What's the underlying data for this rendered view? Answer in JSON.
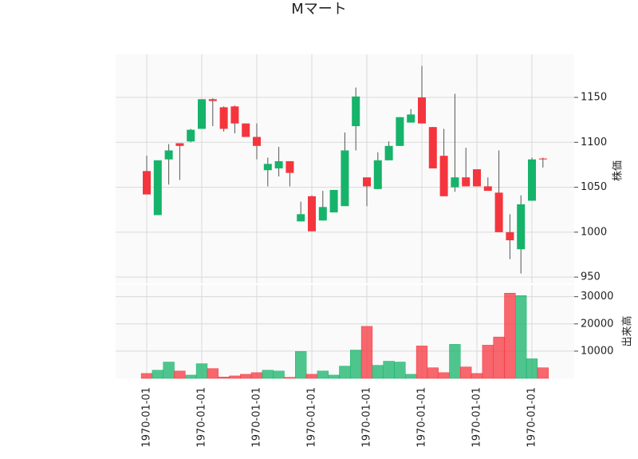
{
  "chart_data": {
    "type": "candlestick",
    "title": "Mマート",
    "categories": [
      "1970-01-01",
      null,
      null,
      null,
      null,
      "1970-01-01",
      null,
      null,
      null,
      null,
      "1970-01-01",
      null,
      null,
      null,
      null,
      "1970-01-01",
      null,
      null,
      null,
      null,
      "1970-01-01",
      null,
      null,
      null,
      null,
      "1970-01-01",
      null,
      null,
      null,
      null,
      "1970-01-01",
      null,
      null,
      null,
      null,
      "1970-01-01",
      null
    ],
    "open": [
      1068,
      1019,
      1081,
      1099,
      1101,
      1115,
      1148,
      1139,
      1140,
      1121,
      1106,
      1069,
      1071,
      1079,
      1012,
      1040,
      1013,
      1022,
      1029,
      1118,
      1061,
      1048,
      1080,
      1096,
      1122,
      1150,
      1117,
      1085,
      1050,
      1061,
      1070,
      1051,
      1044,
      1000,
      981,
      1035,
      1082
    ],
    "high": [
      1085,
      1080,
      1098,
      1099,
      1115,
      1148,
      1149,
      1140,
      1141,
      1121,
      1121,
      1083,
      1095,
      1079,
      1034,
      1041,
      1046,
      1047,
      1111,
      1161,
      1061,
      1089,
      1101,
      1128,
      1137,
      1185,
      1117,
      1115,
      1154,
      1094,
      1070,
      1061,
      1091,
      1020,
      1041,
      1083,
      1083
    ],
    "low": [
      1042,
      1019,
      1053,
      1058,
      1100,
      1115,
      1118,
      1112,
      1110,
      1106,
      1081,
      1051,
      1062,
      1051,
      1012,
      1001,
      1013,
      1022,
      1029,
      1091,
      1029,
      1048,
      1080,
      1096,
      1122,
      1121,
      1071,
      1040,
      1045,
      1051,
      1051,
      1046,
      1000,
      970,
      954,
      1035,
      1072
    ],
    "close": [
      1042,
      1080,
      1091,
      1096,
      1114,
      1148,
      1146,
      1115,
      1121,
      1106,
      1096,
      1076,
      1079,
      1066,
      1020,
      1001,
      1028,
      1047,
      1091,
      1151,
      1051,
      1080,
      1096,
      1128,
      1131,
      1121,
      1071,
      1040,
      1061,
      1051,
      1051,
      1046,
      1000,
      991,
      1031,
      1081,
      1081
    ],
    "volume": [
      1800,
      3000,
      6000,
      2700,
      1200,
      5400,
      3600,
      500,
      900,
      1500,
      2100,
      3000,
      2700,
      400,
      9900,
      1500,
      2700,
      1200,
      4500,
      10400,
      19100,
      4800,
      6300,
      6000,
      1500,
      11900,
      3900,
      2100,
      12500,
      4200,
      1800,
      12200,
      15200,
      31300,
      30400,
      7200,
      3900
    ],
    "ylim": [
      943,
      1198
    ],
    "yticks": [
      950,
      1000,
      1050,
      1100,
      1150
    ],
    "ylabel": "株価",
    "volume_ylim": [
      0,
      34300
    ],
    "volume_yticks": [
      10000,
      20000,
      30000
    ],
    "volume_ylabel": "出来高",
    "up_color": "#16b36a",
    "down_color": "#f5353d",
    "grid": true
  }
}
